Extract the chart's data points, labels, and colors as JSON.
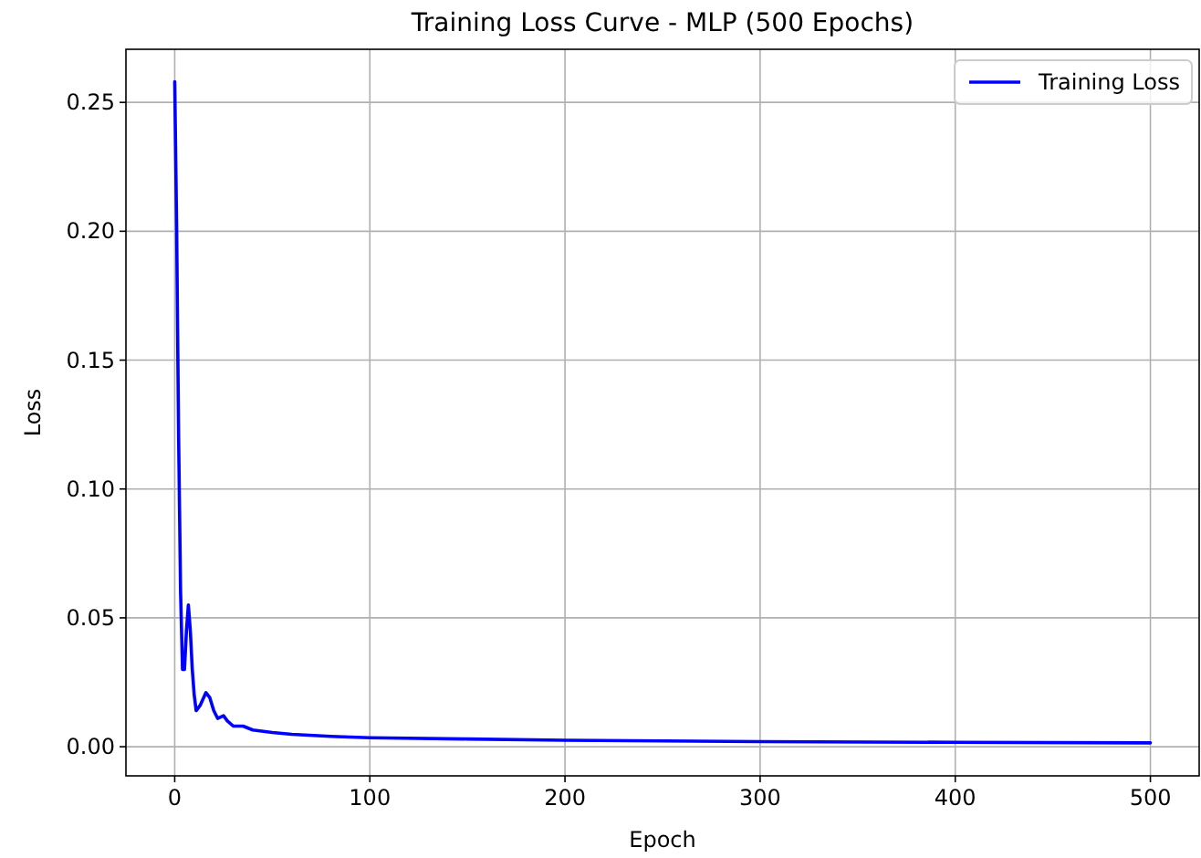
{
  "chart_data": {
    "type": "line",
    "title": "Training Loss Curve - MLP (500 Epochs)",
    "xlabel": "Epoch",
    "ylabel": "Loss",
    "x": [
      0,
      1,
      2,
      3,
      4,
      5,
      6,
      7,
      8,
      9,
      10,
      11,
      13,
      16,
      18,
      20,
      22,
      25,
      27,
      30,
      35,
      40,
      50,
      60,
      80,
      100,
      150,
      200,
      300,
      400,
      500
    ],
    "series": [
      {
        "name": "Training Loss",
        "color": "#0000ff",
        "values": [
          0.258,
          0.2,
          0.12,
          0.06,
          0.03,
          0.03,
          0.045,
          0.055,
          0.045,
          0.03,
          0.02,
          0.014,
          0.016,
          0.021,
          0.019,
          0.014,
          0.011,
          0.012,
          0.01,
          0.008,
          0.008,
          0.0065,
          0.0055,
          0.0048,
          0.004,
          0.0035,
          0.003,
          0.0025,
          0.002,
          0.0017,
          0.0015
        ]
      }
    ],
    "xlim": [
      -25,
      525
    ],
    "xticks": [
      0,
      100,
      200,
      300,
      400,
      500
    ],
    "ylim": [
      -0.0113,
      0.2706
    ],
    "yticks": [
      {
        "value": 0,
        "label": "0.00"
      },
      {
        "value": 0.05,
        "label": "0.05"
      },
      {
        "value": 0.1,
        "label": "0.10"
      },
      {
        "value": 0.15,
        "label": "0.15"
      },
      {
        "value": 0.2,
        "label": "0.20"
      },
      {
        "value": 0.25,
        "label": "0.25"
      }
    ],
    "grid": true,
    "legend": "top right",
    "marker": "none",
    "line_style": "solid"
  }
}
